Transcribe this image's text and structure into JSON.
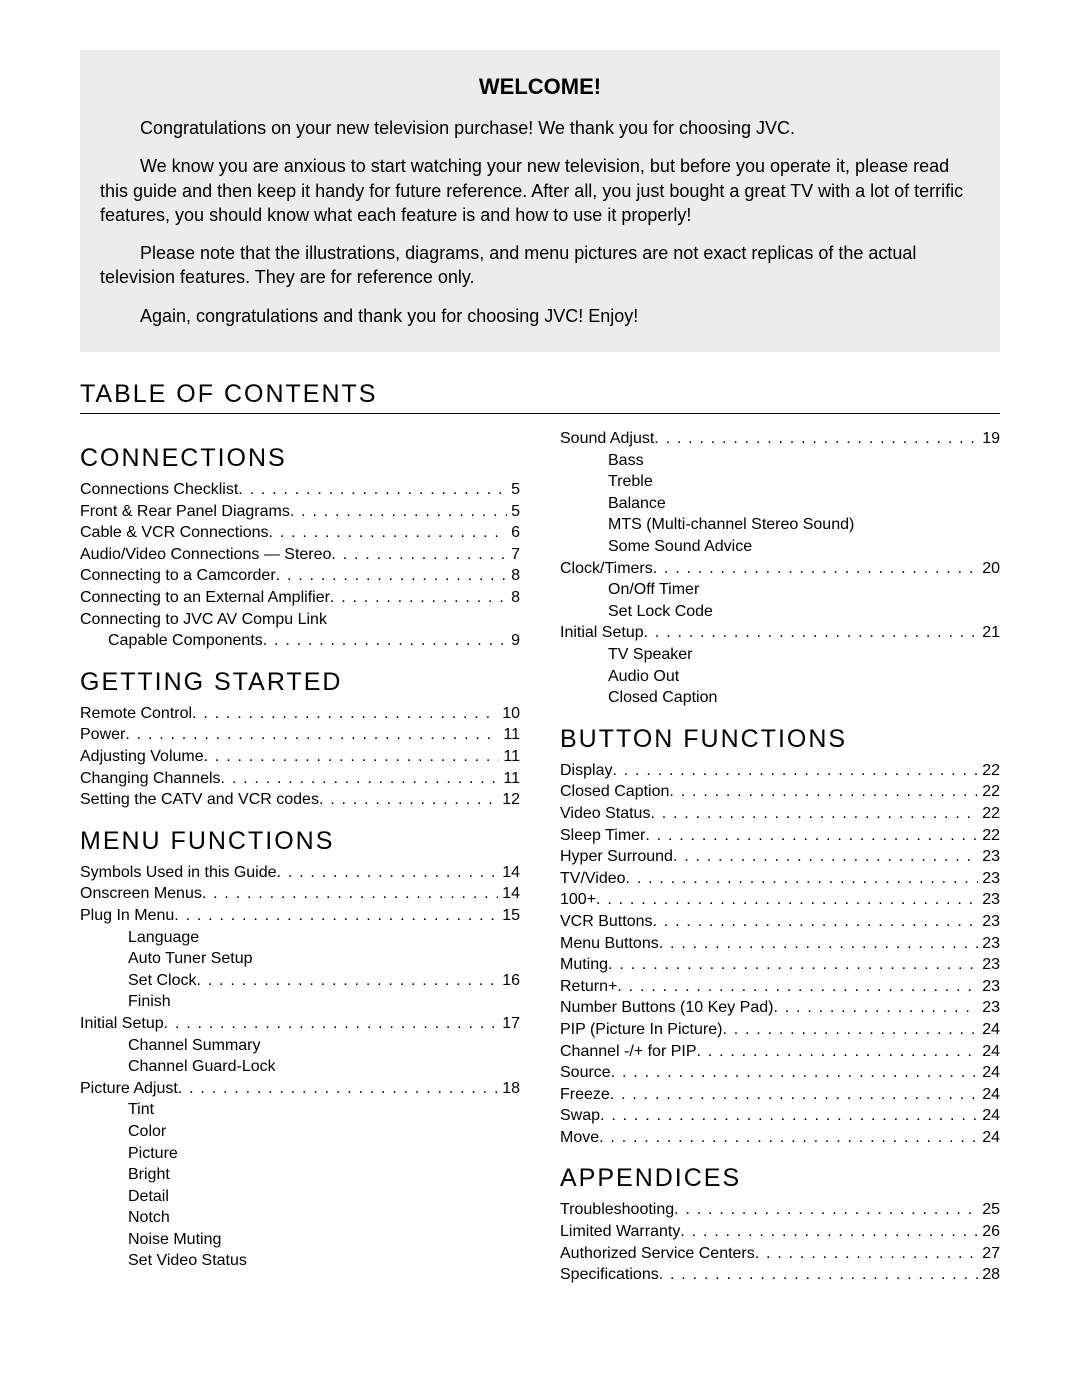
{
  "welcome": {
    "title": "WELCOME!",
    "paragraphs": [
      "Congratulations on your new television purchase! We thank you for choosing JVC.",
      "We know you are anxious to start watching your new television, but before you operate it, please read this guide and then keep it handy for future reference. After all, you just bought a great TV with a lot of terrific features, you should know what each feature is and how to use it properly!",
      "Please note that the illustrations, diagrams, and menu pictures are not exact replicas of the actual television features. They are for reference only.",
      "Again, congratulations and thank you for choosing JVC! Enjoy!"
    ]
  },
  "toc_heading": "TABLE OF CONTENTS",
  "left": [
    {
      "title": "CONNECTIONS",
      "items": [
        {
          "label": "Connections Checklist",
          "page": "5"
        },
        {
          "label": "Front & Rear Panel Diagrams",
          "page": "5"
        },
        {
          "label": "Cable & VCR Connections",
          "page": "6"
        },
        {
          "label": "Audio/Video Connections — Stereo",
          "page": "7"
        },
        {
          "label": "Connecting to a Camcorder",
          "page": "8"
        },
        {
          "label": "Connecting to an External Amplifier",
          "page": "8"
        },
        {
          "label": "Connecting to JVC AV Compu Link"
        },
        {
          "label": "Capable Components",
          "page": "9",
          "indent": 1
        }
      ]
    },
    {
      "title": "GETTING STARTED",
      "items": [
        {
          "label": "Remote Control",
          "page": "10"
        },
        {
          "label": "Power",
          "page": "11"
        },
        {
          "label": "Adjusting Volume",
          "page": "11"
        },
        {
          "label": "Changing Channels",
          "page": "11"
        },
        {
          "label": "Setting the CATV and VCR codes",
          "page": "12"
        }
      ]
    },
    {
      "title": "MENU FUNCTIONS",
      "items": [
        {
          "label": "Symbols Used in this Guide",
          "page": "14"
        },
        {
          "label": "Onscreen Menus",
          "page": "14"
        },
        {
          "label": "Plug In Menu",
          "page": "15"
        },
        {
          "label": "Language",
          "sub": true
        },
        {
          "label": "Auto Tuner Setup",
          "sub": true
        },
        {
          "label": "Set Clock",
          "page": "16",
          "sub": true
        },
        {
          "label": "Finish",
          "sub": true
        },
        {
          "label": "Initial Setup",
          "page": "17"
        },
        {
          "label": "Channel Summary",
          "sub": true
        },
        {
          "label": "Channel Guard-Lock",
          "sub": true
        },
        {
          "label": "Picture Adjust",
          "page": "18"
        },
        {
          "label": "Tint",
          "sub": true
        },
        {
          "label": "Color",
          "sub": true
        },
        {
          "label": "Picture",
          "sub": true
        },
        {
          "label": "Bright",
          "sub": true
        },
        {
          "label": "Detail",
          "sub": true
        },
        {
          "label": "Notch",
          "sub": true
        },
        {
          "label": "Noise Muting",
          "sub": true
        },
        {
          "label": "Set Video Status",
          "sub": true
        }
      ]
    }
  ],
  "right": [
    {
      "title": "",
      "items": [
        {
          "label": "Sound Adjust",
          "page": "19"
        },
        {
          "label": "Bass",
          "sub": true
        },
        {
          "label": "Treble",
          "sub": true
        },
        {
          "label": "Balance",
          "sub": true
        },
        {
          "label": "MTS (Multi-channel Stereo Sound)",
          "sub": true
        },
        {
          "label": "Some Sound Advice",
          "sub": true
        },
        {
          "label": "Clock/Timers",
          "page": "20"
        },
        {
          "label": "On/Off Timer",
          "sub": true
        },
        {
          "label": "Set Lock Code",
          "sub": true
        },
        {
          "label": "Initial Setup",
          "page": "21"
        },
        {
          "label": "TV Speaker",
          "sub": true
        },
        {
          "label": "Audio Out",
          "sub": true
        },
        {
          "label": "Closed Caption",
          "sub": true
        }
      ]
    },
    {
      "title": "BUTTON FUNCTIONS",
      "items": [
        {
          "label": "Display",
          "page": "22"
        },
        {
          "label": "Closed Caption",
          "page": "22"
        },
        {
          "label": "Video Status",
          "page": "22"
        },
        {
          "label": "Sleep Timer",
          "page": "22"
        },
        {
          "label": "Hyper Surround",
          "page": "23"
        },
        {
          "label": "TV/Video",
          "page": "23"
        },
        {
          "label": "100+",
          "page": "23"
        },
        {
          "label": "VCR Buttons",
          "page": "23"
        },
        {
          "label": "Menu Buttons",
          "page": "23"
        },
        {
          "label": "Muting",
          "page": "23"
        },
        {
          "label": "Return+",
          "page": "23"
        },
        {
          "label": "Number Buttons (10 Key Pad)",
          "page": "23"
        },
        {
          "label": "PIP (Picture In Picture)",
          "page": "24"
        },
        {
          "label": "Channel -/+ for PIP",
          "page": "24"
        },
        {
          "label": "Source",
          "page": "24"
        },
        {
          "label": "Freeze",
          "page": "24"
        },
        {
          "label": "Swap",
          "page": "24"
        },
        {
          "label": "Move",
          "page": "24"
        }
      ]
    },
    {
      "title": "APPENDICES",
      "items": [
        {
          "label": "Troubleshooting",
          "page": "25"
        },
        {
          "label": "Limited Warranty",
          "page": "26"
        },
        {
          "label": "Authorized Service Centers",
          "page": "27"
        },
        {
          "label": "Specifications",
          "page": "28"
        }
      ]
    }
  ]
}
